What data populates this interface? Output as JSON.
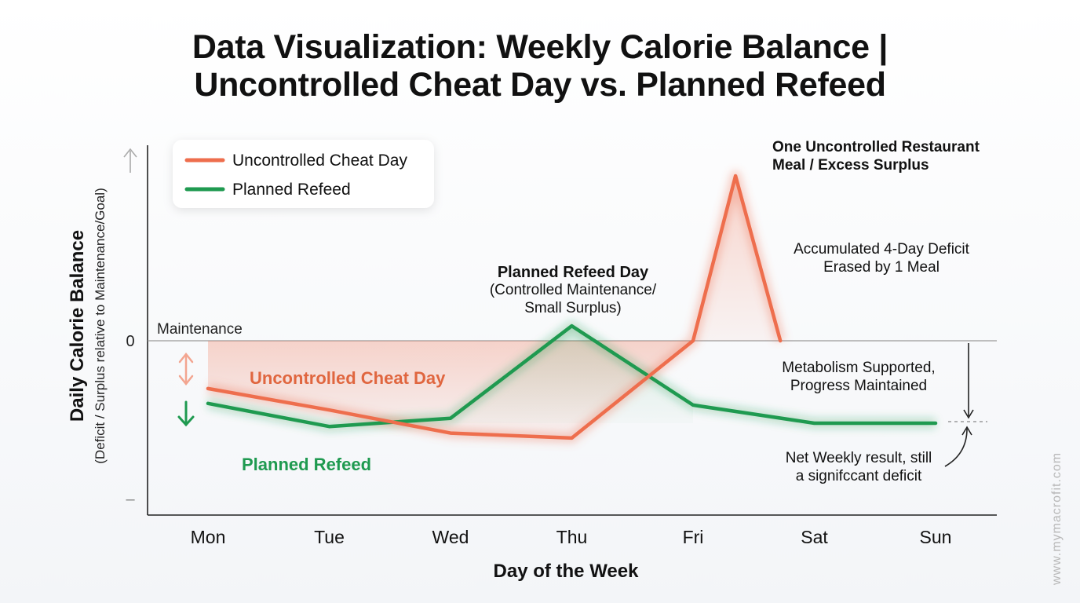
{
  "title_line1": "Data Visualization: Weekly Calorie Balance |",
  "title_line2": "Uncontrolled Cheat Day vs. Planned Refeed",
  "watermark": "www.mymacrofit.com",
  "colors": {
    "cheat": "#ee6e4d",
    "refeed": "#1f9a50",
    "axis": "#222222",
    "text": "#111111"
  },
  "chart_data": {
    "type": "line",
    "title": "Data Visualization: Weekly Calorie Balance | Uncontrolled Cheat Day vs. Planned Refeed",
    "xlabel": "Day of the Week",
    "ylabel": "Daily Calorie Balance",
    "ylabel_sub": "(Deficit / Surplus relative to Maintenance/Goal)",
    "categories": [
      "Mon",
      "Tue",
      "Wed",
      "Thu",
      "Fri",
      "Sat",
      "Sun"
    ],
    "ytick_zero": "0",
    "ytick_minus": "–",
    "ylim": [
      -1.08,
      1.05
    ],
    "grid": false,
    "legend_position": "top-left",
    "maintenance_label": "Maintenance",
    "series": [
      {
        "name": "Uncontrolled Cheat Day",
        "points": [
          [
            0,
            -0.29
          ],
          [
            1,
            -0.42
          ],
          [
            2,
            -0.56
          ],
          [
            3,
            -0.59
          ],
          [
            4,
            0.0
          ],
          [
            4.35,
            1.0
          ],
          [
            4.72,
            0.0
          ]
        ]
      },
      {
        "name": "Planned Refeed",
        "points": [
          [
            0,
            -0.38
          ],
          [
            1,
            -0.52
          ],
          [
            2,
            -0.47
          ],
          [
            3,
            0.09
          ],
          [
            4,
            -0.39
          ],
          [
            5,
            -0.5
          ],
          [
            6,
            -0.5
          ]
        ]
      }
    ],
    "annotations": {
      "restaurant_line1": "One Uncontrolled Restaurant",
      "restaurant_line2": "Meal / Excess Surplus",
      "accum_line1": "Accumulated 4-Day Deficit",
      "accum_line2": "Erased by 1 Meal",
      "refeed_title": "Planned Refeed Day",
      "refeed_sub1": "(Controlled Maintenance/",
      "refeed_sub2": "Small Surplus)",
      "metab_line1": "Metabolism Supported,",
      "metab_line2": "Progress Maintained",
      "net_line1": "Net Weekly result, still",
      "net_line2": "a signifccant deficit",
      "cheat_side_label": "Uncontrolled Cheat Day",
      "refeed_side_label": "Planned Refeed"
    }
  }
}
